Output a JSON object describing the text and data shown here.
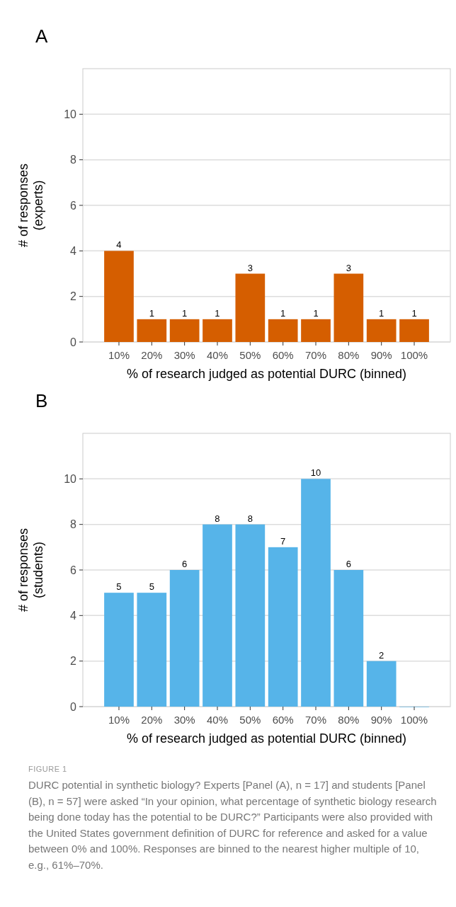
{
  "chart_data": [
    {
      "type": "bar",
      "title": "A",
      "xlabel": "% of research judged as potential DURC (binned)",
      "ylabel": "# of responses\n(experts)",
      "categories": [
        "10%",
        "20%",
        "30%",
        "40%",
        "50%",
        "60%",
        "70%",
        "80%",
        "90%",
        "100%"
      ],
      "values": [
        4,
        1,
        1,
        1,
        3,
        1,
        1,
        3,
        1,
        1
      ],
      "color": "#d55e00",
      "data_labels": true,
      "ylim": [
        0,
        12
      ],
      "yticks": [
        0,
        2,
        4,
        6,
        8,
        10
      ],
      "grid": "y"
    },
    {
      "type": "bar",
      "title": "B",
      "xlabel": "% of research judged as potential DURC (binned)",
      "ylabel": "# of responses\n(students)",
      "categories": [
        "10%",
        "20%",
        "30%",
        "40%",
        "50%",
        "60%",
        "70%",
        "80%",
        "90%",
        "100%"
      ],
      "values": [
        5,
        5,
        6,
        8,
        8,
        7,
        10,
        6,
        2,
        0
      ],
      "color": "#56b4e9",
      "value_labels": [
        "5",
        "5",
        "6",
        "8",
        "8",
        "7",
        "10",
        "6",
        "2",
        null
      ],
      "ylim": [
        0,
        12
      ],
      "yticks": [
        0,
        2,
        4,
        6,
        8,
        10
      ],
      "grid": "y",
      "annotations": [
        "FIGURE 1",
        "DURC potential in synthetic biology? Experts [Panel (A), n = 17] and students [Panel (B), n = 57] were asked “In your opinion, what percentage of synthetic biology research being done today has the potential to be DURC?” Participants were also provided with the United States government definition of DURC for reference and asked for a value between 0% and 100%. Responses are binned to the nearest higher multiple of 10, e.g., 61%–70%."
      ]
    }
  ]
}
